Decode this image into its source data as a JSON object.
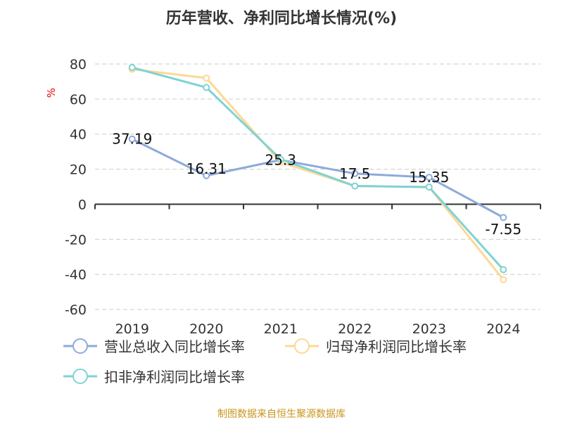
{
  "chart_data": {
    "type": "line",
    "title": "历年营收、净利同比增长情况(%)",
    "ylabel": "%",
    "categories": [
      "2019",
      "2020",
      "2021",
      "2022",
      "2023",
      "2024"
    ],
    "ylim": [
      -60,
      80
    ],
    "yticks": [
      80,
      60,
      40,
      20,
      0,
      -20,
      -40,
      -60
    ],
    "grid": true,
    "legend_position": "bottom",
    "series": [
      {
        "name": "营业总收入同比增长率",
        "color": "#8eaadb",
        "values": [
          37.19,
          16.31,
          25.3,
          17.5,
          15.35,
          -7.55
        ],
        "labels": [
          "37.19",
          "16.31",
          "25.3",
          "17.5",
          "15.35",
          "-7.55"
        ]
      },
      {
        "name": "归母净利润同比增长率",
        "color": "#fdd894",
        "values": [
          77,
          72,
          24,
          10.4,
          9.8,
          -43
        ]
      },
      {
        "name": "扣非净利润同比增长率",
        "color": "#7fd3d3",
        "values": [
          78,
          66.6,
          25.7,
          10.4,
          9.8,
          -37.3
        ]
      }
    ]
  },
  "source": "制图数据来自恒生聚源数据库"
}
